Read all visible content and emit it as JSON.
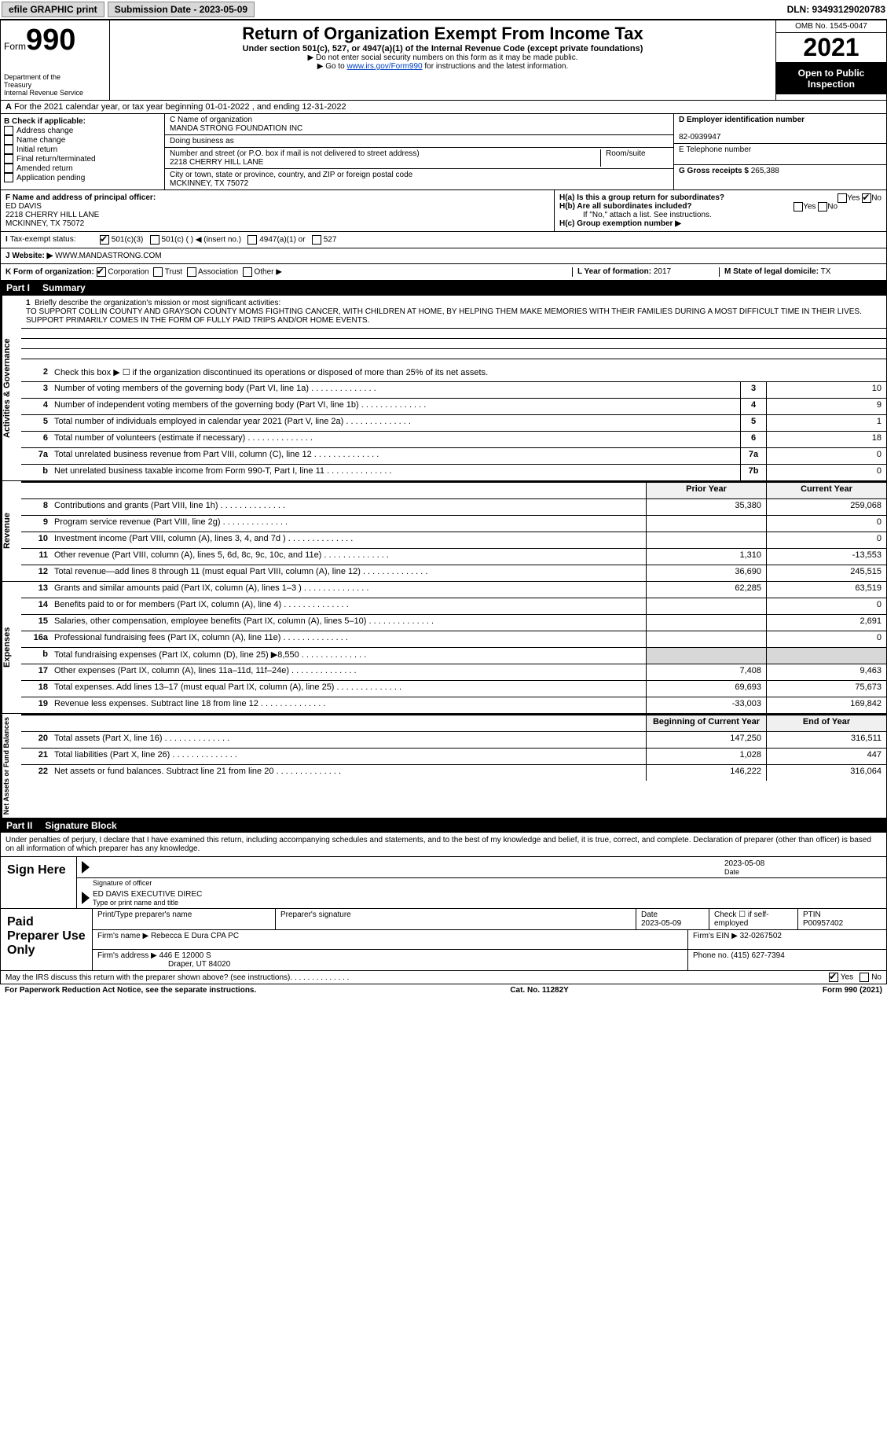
{
  "topbar": {
    "efile_label": "efile GRAPHIC print",
    "submission_label": "Submission Date - 2023-05-09",
    "dln_label": "DLN: 93493129020783"
  },
  "header": {
    "form_label": "Form",
    "form_number": "990",
    "title": "Return of Organization Exempt From Income Tax",
    "subtitle": "Under section 501(c), 527, or 4947(a)(1) of the Internal Revenue Code (except private foundations)",
    "note1": "▶ Do not enter social security numbers on this form as it may be made public.",
    "note2_prefix": "▶ Go to ",
    "note2_link": "www.irs.gov/Form990",
    "note2_suffix": " for instructions and the latest information.",
    "dept": "Department of the Treasury\nInternal Revenue Service",
    "omb": "OMB No. 1545-0047",
    "year": "2021",
    "inspect": "Open to Public Inspection"
  },
  "line_a": "For the 2021 calendar year, or tax year beginning 01-01-2022  , and ending 12-31-2022",
  "section_b": {
    "label": "B Check if applicable:",
    "items": [
      "Address change",
      "Name change",
      "Initial return",
      "Final return/terminated",
      "Amended return",
      "Application pending"
    ]
  },
  "section_c": {
    "name_label": "C Name of organization",
    "name": "MANDA STRONG FOUNDATION INC",
    "dba_label": "Doing business as",
    "street_label": "Number and street (or P.O. box if mail is not delivered to street address)",
    "room_label": "Room/suite",
    "street": "2218 CHERRY HILL LANE",
    "city_label": "City or town, state or province, country, and ZIP or foreign postal code",
    "city": "MCKINNEY, TX  75072"
  },
  "section_d": {
    "ein_label": "D Employer identification number",
    "ein": "82-0939947",
    "phone_label": "E Telephone number",
    "gross_label": "G Gross receipts $",
    "gross": "265,388"
  },
  "section_f": {
    "label": "F Name and address of principal officer:",
    "name": "ED DAVIS",
    "addr1": "2218 CHERRY HILL LANE",
    "addr2": "MCKINNEY, TX  75072"
  },
  "section_h": {
    "ha_label": "H(a)  Is this a group return for subordinates?",
    "hb_label": "H(b)  Are all subordinates included?",
    "hb_note": "If \"No,\" attach a list. See instructions.",
    "hc_label": "H(c)  Group exemption number ▶",
    "yes": "Yes",
    "no": "No"
  },
  "section_i": {
    "label": "Tax-exempt status:",
    "opt1": "501(c)(3)",
    "opt2": "501(c) (   ) ◀ (insert no.)",
    "opt3": "4947(a)(1) or",
    "opt4": "527"
  },
  "section_j": {
    "label": "Website: ▶",
    "value": "WWW.MANDASTRONG.COM"
  },
  "section_k": {
    "label": "K Form of organization:",
    "opts": [
      "Corporation",
      "Trust",
      "Association",
      "Other ▶"
    ]
  },
  "section_l": {
    "label": "L Year of formation:",
    "value": "2017"
  },
  "section_m": {
    "label": "M State of legal domicile:",
    "value": "TX"
  },
  "part1": {
    "header_num": "Part I",
    "header_label": "Summary",
    "vlabel_ag": "Activities & Governance",
    "vlabel_rev": "Revenue",
    "vlabel_exp": "Expenses",
    "vlabel_net": "Net Assets or Fund Balances",
    "line1_label": "Briefly describe the organization's mission or most significant activities:",
    "mission": "TO SUPPORT COLLIN COUNTY AND GRAYSON COUNTY MOMS FIGHTING CANCER, WITH CHILDREN AT HOME, BY HELPING THEM MAKE MEMORIES WITH THEIR FAMILIES DURING A MOST DIFFICULT TIME IN THEIR LIVES. SUPPORT PRIMARILY COMES IN THE FORM OF FULLY PAID TRIPS AND/OR HOME EVENTS.",
    "line2": "Check this box ▶ ☐ if the organization discontinued its operations or disposed of more than 25% of its net assets.",
    "rows_ag": [
      {
        "n": "3",
        "d": "Number of voting members of the governing body (Part VI, line 1a)",
        "box": "3",
        "v": "10"
      },
      {
        "n": "4",
        "d": "Number of independent voting members of the governing body (Part VI, line 1b)",
        "box": "4",
        "v": "9"
      },
      {
        "n": "5",
        "d": "Total number of individuals employed in calendar year 2021 (Part V, line 2a)",
        "box": "5",
        "v": "1"
      },
      {
        "n": "6",
        "d": "Total number of volunteers (estimate if necessary)",
        "box": "6",
        "v": "18"
      },
      {
        "n": "7a",
        "d": "Total unrelated business revenue from Part VIII, column (C), line 12",
        "box": "7a",
        "v": "0"
      },
      {
        "n": "b",
        "d": "Net unrelated business taxable income from Form 990-T, Part I, line 11",
        "box": "7b",
        "v": "0"
      }
    ],
    "col_prior": "Prior Year",
    "col_current": "Current Year",
    "rows_rev": [
      {
        "n": "8",
        "d": "Contributions and grants (Part VIII, line 1h)",
        "p": "35,380",
        "c": "259,068"
      },
      {
        "n": "9",
        "d": "Program service revenue (Part VIII, line 2g)",
        "p": "",
        "c": "0"
      },
      {
        "n": "10",
        "d": "Investment income (Part VIII, column (A), lines 3, 4, and 7d )",
        "p": "",
        "c": "0"
      },
      {
        "n": "11",
        "d": "Other revenue (Part VIII, column (A), lines 5, 6d, 8c, 9c, 10c, and 11e)",
        "p": "1,310",
        "c": "-13,553"
      },
      {
        "n": "12",
        "d": "Total revenue—add lines 8 through 11 (must equal Part VIII, column (A), line 12)",
        "p": "36,690",
        "c": "245,515"
      }
    ],
    "rows_exp": [
      {
        "n": "13",
        "d": "Grants and similar amounts paid (Part IX, column (A), lines 1–3 )",
        "p": "62,285",
        "c": "63,519"
      },
      {
        "n": "14",
        "d": "Benefits paid to or for members (Part IX, column (A), line 4)",
        "p": "",
        "c": "0"
      },
      {
        "n": "15",
        "d": "Salaries, other compensation, employee benefits (Part IX, column (A), lines 5–10)",
        "p": "",
        "c": "2,691"
      },
      {
        "n": "16a",
        "d": "Professional fundraising fees (Part IX, column (A), line 11e)",
        "p": "",
        "c": "0"
      },
      {
        "n": "b",
        "d": "Total fundraising expenses (Part IX, column (D), line 25) ▶8,550",
        "p": "shade",
        "c": "shade"
      },
      {
        "n": "17",
        "d": "Other expenses (Part IX, column (A), lines 11a–11d, 11f–24e)",
        "p": "7,408",
        "c": "9,463"
      },
      {
        "n": "18",
        "d": "Total expenses. Add lines 13–17 (must equal Part IX, column (A), line 25)",
        "p": "69,693",
        "c": "75,673"
      },
      {
        "n": "19",
        "d": "Revenue less expenses. Subtract line 18 from line 12",
        "p": "-33,003",
        "c": "169,842"
      }
    ],
    "col_begin": "Beginning of Current Year",
    "col_end": "End of Year",
    "rows_net": [
      {
        "n": "20",
        "d": "Total assets (Part X, line 16)",
        "p": "147,250",
        "c": "316,511"
      },
      {
        "n": "21",
        "d": "Total liabilities (Part X, line 26)",
        "p": "1,028",
        "c": "447"
      },
      {
        "n": "22",
        "d": "Net assets or fund balances. Subtract line 21 from line 20",
        "p": "146,222",
        "c": "316,064"
      }
    ]
  },
  "part2": {
    "header_num": "Part II",
    "header_label": "Signature Block",
    "declaration": "Under penalties of perjury, I declare that I have examined this return, including accompanying schedules and statements, and to the best of my knowledge and belief, it is true, correct, and complete. Declaration of preparer (other than officer) is based on all information of which preparer has any knowledge.",
    "sign_here": "Sign Here",
    "sig_officer": "Signature of officer",
    "sig_date": "Date",
    "sig_date_val": "2023-05-08",
    "officer_name": "ED DAVIS EXECUTIVE DIREC",
    "type_name": "Type or print name and title",
    "paid_label": "Paid Preparer Use Only",
    "prep_name_label": "Print/Type preparer's name",
    "prep_sig_label": "Preparer's signature",
    "prep_date_label": "Date",
    "prep_date": "2023-05-09",
    "prep_check_label": "Check ☐ if self-employed",
    "ptin_label": "PTIN",
    "ptin": "P00957402",
    "firm_name_label": "Firm's name    ▶",
    "firm_name": "Rebecca E Dura CPA PC",
    "firm_ein_label": "Firm's EIN ▶",
    "firm_ein": "32-0267502",
    "firm_addr_label": "Firm's address ▶",
    "firm_addr1": "446 E 12000 S",
    "firm_addr2": "Draper, UT  84020",
    "phone_label": "Phone no.",
    "phone": "(415) 627-7394",
    "discuss": "May the IRS discuss this return with the preparer shown above? (see instructions)",
    "yes": "Yes",
    "no": "No"
  },
  "footer": {
    "pra": "For Paperwork Reduction Act Notice, see the separate instructions.",
    "cat": "Cat. No. 11282Y",
    "form": "Form 990 (2021)"
  },
  "colors": {
    "header_black": "#000000",
    "link_blue": "#0040c0",
    "shade": "#d8d8d8"
  }
}
